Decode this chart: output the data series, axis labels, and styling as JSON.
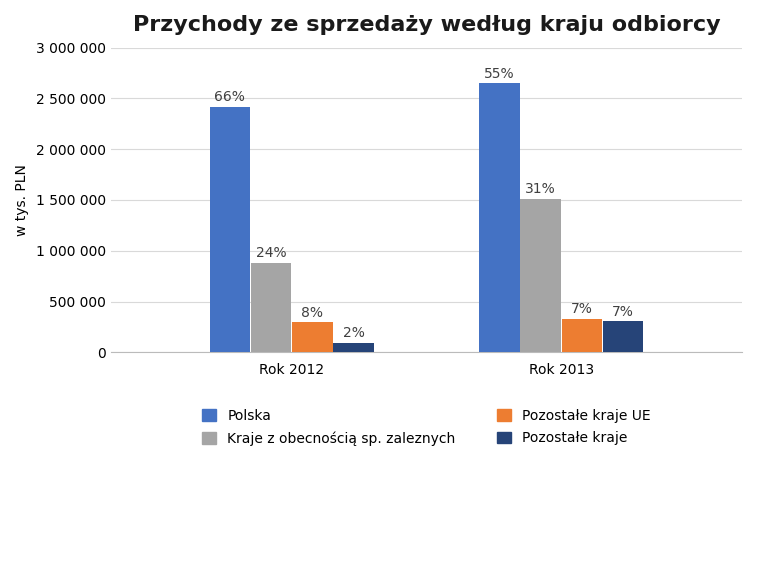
{
  "title": "Przychody ze sprzedaży według kraju odbiorcy",
  "ylabel": "w tys. PLN",
  "groups": [
    "Rok 2012",
    "Rok 2013"
  ],
  "series": [
    {
      "name": "Polska",
      "color": "#4472C4",
      "values": [
        2420000,
        2650000
      ],
      "labels": [
        "66%",
        "55%"
      ]
    },
    {
      "name": "Kraje z obecnością sp. zaleznych",
      "color": "#A5A5A5",
      "values": [
        880000,
        1510000
      ],
      "labels": [
        "24%",
        "31%"
      ]
    },
    {
      "name": "Pozostałe kraje UE",
      "color": "#ED7D31",
      "values": [
        295000,
        330000
      ],
      "labels": [
        "8%",
        "7%"
      ]
    },
    {
      "name": "Pozostałe kraje",
      "color": "#4472C4",
      "values": [
        95000,
        305000
      ],
      "labels": [
        "2%",
        "7%"
      ]
    }
  ],
  "ylim": [
    0,
    3000000
  ],
  "yticks": [
    0,
    500000,
    1000000,
    1500000,
    2000000,
    2500000,
    3000000
  ],
  "ytick_labels": [
    "0",
    "500 000",
    "1 000 000",
    "1 500 000",
    "2 000 000",
    "2 500 000",
    "3 000 000"
  ],
  "background_color": "#FFFFFF",
  "grid_color": "#D9D9D9",
  "title_fontsize": 16,
  "label_fontsize": 10,
  "tick_fontsize": 10,
  "annotation_fontsize": 10,
  "legend_fontsize": 10,
  "polska_color": "#4472C4",
  "kraje_color": "#A5A5A5",
  "ue_color": "#ED7D31",
  "pozostale_color": "#4472C4",
  "pozostale_dark_color": "#264478"
}
